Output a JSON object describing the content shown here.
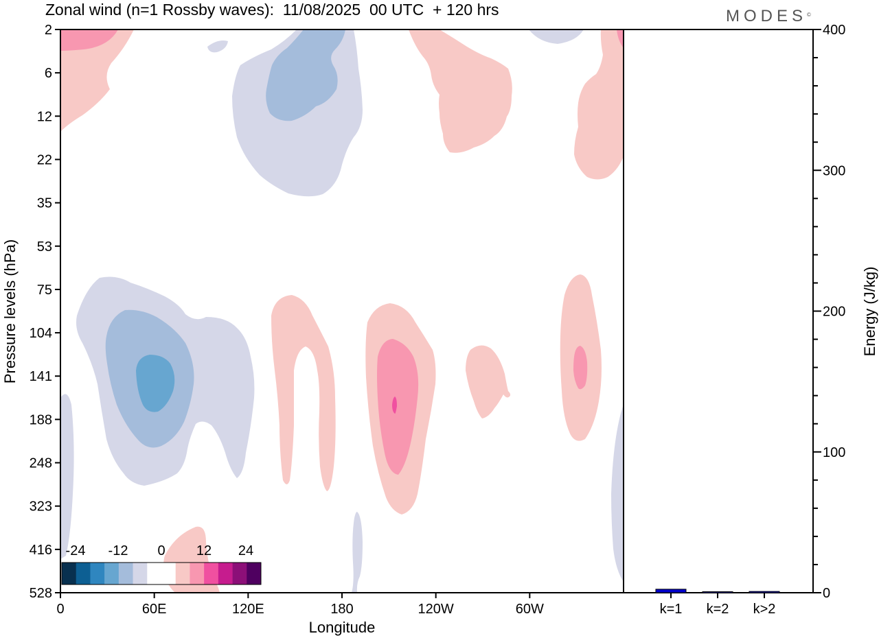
{
  "header": {
    "title": "Zonal wind (n=1 Rossby waves):  11/08/2025  00 UTC  + 120 hrs",
    "brand": "MODES",
    "brand_mark": "©"
  },
  "chart_data": [
    {
      "type": "heatmap",
      "xlabel": "Longitude",
      "ylabel": "Pressure levels (hPa)",
      "x_ticks": [
        "0",
        "60E",
        "120E",
        "180",
        "120W",
        "60W"
      ],
      "y_ticks": [
        "2",
        "6",
        "12",
        "22",
        "35",
        "53",
        "75",
        "104",
        "141",
        "188",
        "248",
        "323",
        "416",
        "528"
      ],
      "colorbar": {
        "labels": [
          "-24",
          "-12",
          "0",
          "12",
          "24"
        ],
        "colors": [
          "#08304f",
          "#0d5f93",
          "#2f86bf",
          "#67a6d0",
          "#a4bcdb",
          "#d5d7e8",
          "#ffffff",
          "#ffffff",
          "#f8c9c6",
          "#f897b0",
          "#f050a0",
          "#c61c8e",
          "#8c0f78",
          "#4f0060"
        ]
      },
      "contours": [
        {
          "level": "0 to 4",
          "color": "#f8c9c6"
        },
        {
          "level": "4 to 8",
          "color": "#f897b0"
        },
        {
          "level": "8 to 12",
          "color": "#f050a0"
        },
        {
          "level": "-4 to 0",
          "color": "#d5d7e8"
        },
        {
          "level": "-8 to -4",
          "color": "#a4bcdb"
        },
        {
          "level": "-12 to -8",
          "color": "#67a6d0"
        }
      ]
    },
    {
      "type": "bar",
      "categories": [
        "k=1",
        "k=2",
        "k>2"
      ],
      "values": [
        2.5,
        0.6,
        0.9
      ],
      "ylabel": "Energy (J/kg)",
      "ylim": [
        0,
        400
      ],
      "y_ticks": [
        "0",
        "100",
        "200",
        "300",
        "400"
      ],
      "bar_color": "#0000cc"
    }
  ]
}
